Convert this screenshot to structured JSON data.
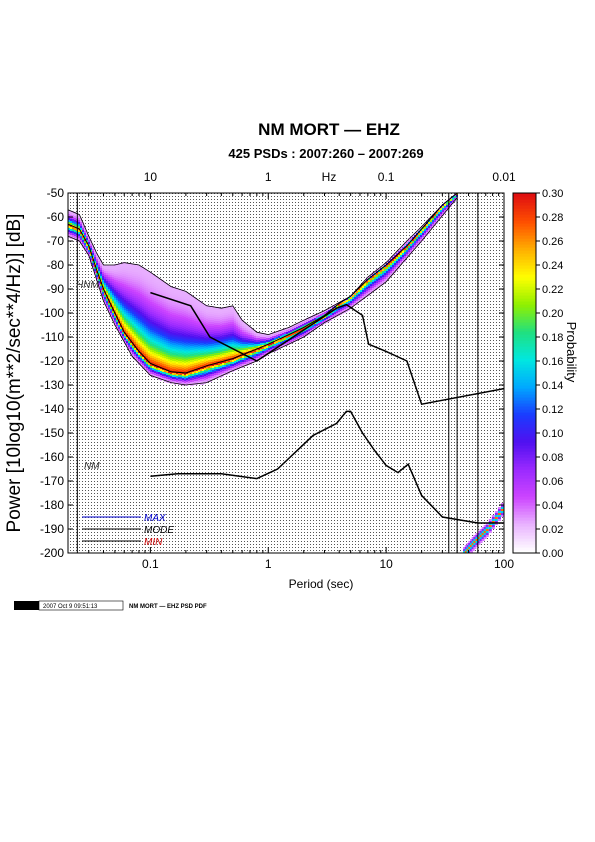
{
  "titles": {
    "main": "NM MORT — EHZ",
    "sub": "425 PSDs : 2007:260 – 2007:269"
  },
  "footer": {
    "logo": "GMT",
    "timestamp": "2007 Oct  9 09:51:13",
    "caption": "NM MORT — EHZ PSD PDF"
  },
  "colors": {
    "cmap": [
      "#ffffff",
      "#e9b3ff",
      "#cc44ff",
      "#9a2aff",
      "#5010f0",
      "#1a3cff",
      "#00a8ff",
      "#00e8e0",
      "#20e080",
      "#90f000",
      "#ffff00",
      "#ffb000",
      "#ff5000",
      "#e01010"
    ],
    "max_line": "#0000cc",
    "mode_line": "#000000",
    "min_line": "#cc0000"
  },
  "chart_data": {
    "type": "heatmap",
    "title": "NM MORT — EHZ",
    "subtitle": "425 PSDs : 2007:260 – 2007:269",
    "xlabel": "Period (sec)",
    "x_top_label": "Hz",
    "ylabel": "Power [10log10(m**2/sec**4/Hz)] [dB]",
    "xscale": "log",
    "xlim": [
      0.02,
      100
    ],
    "ylim": [
      -200,
      -50
    ],
    "grid": true,
    "x_ticks": [
      0.1,
      1,
      10,
      100
    ],
    "x_tick_labels": [
      "0.1",
      "1",
      "10",
      "100"
    ],
    "x_top_ticks": [
      0.1,
      1,
      10,
      100
    ],
    "x_top_tick_labels": [
      "10",
      "1",
      "0.1",
      "0.01"
    ],
    "y_ticks": [
      -200,
      -190,
      -180,
      -170,
      -160,
      -150,
      -140,
      -130,
      -120,
      -110,
      -100,
      -90,
      -80,
      -70,
      -60,
      -50
    ],
    "colorbar": {
      "label": "Probability",
      "range": [
        0,
        0.3
      ],
      "ticks": [
        "0.00",
        "0.02",
        "0.04",
        "0.06",
        "0.08",
        "0.10",
        "0.12",
        "0.14",
        "0.16",
        "0.18",
        "0.20",
        "0.22",
        "0.24",
        "0.26",
        "0.28",
        "0.30"
      ]
    },
    "noise_model_labels": {
      "high": "HNM",
      "low": "NM"
    },
    "legend": {
      "position": "bottom-left",
      "entries": [
        {
          "label": "MAX"
        },
        {
          "label": "MODE"
        },
        {
          "label": "MIN"
        }
      ]
    },
    "series": [
      {
        "id": "mode",
        "points": [
          [
            0.02,
            -63
          ],
          [
            0.025,
            -65
          ],
          [
            0.03,
            -72
          ],
          [
            0.035,
            -82
          ],
          [
            0.04,
            -90
          ],
          [
            0.05,
            -100
          ],
          [
            0.06,
            -108
          ],
          [
            0.08,
            -116
          ],
          [
            0.1,
            -121
          ],
          [
            0.15,
            -124.5
          ],
          [
            0.2,
            -125
          ],
          [
            0.3,
            -122
          ],
          [
            0.5,
            -119
          ],
          [
            0.8,
            -115
          ],
          [
            1,
            -113
          ],
          [
            1.5,
            -109
          ],
          [
            2,
            -106
          ],
          [
            3,
            -101
          ],
          [
            4,
            -96
          ],
          [
            5,
            -93
          ],
          [
            7,
            -86
          ],
          [
            10,
            -80
          ],
          [
            15,
            -72
          ],
          [
            20,
            -65
          ],
          [
            30,
            -55
          ],
          [
            40,
            -50
          ]
        ]
      },
      {
        "id": "max",
        "points": [
          [
            0.02,
            -57
          ],
          [
            0.025,
            -59
          ],
          [
            0.03,
            -68
          ],
          [
            0.035,
            -75
          ],
          [
            0.04,
            -80
          ],
          [
            0.05,
            -80
          ],
          [
            0.06,
            -79
          ],
          [
            0.08,
            -80
          ],
          [
            0.1,
            -83
          ],
          [
            0.15,
            -89
          ],
          [
            0.2,
            -91
          ],
          [
            0.3,
            -97
          ],
          [
            0.4,
            -98
          ],
          [
            0.5,
            -97
          ],
          [
            0.6,
            -103
          ],
          [
            0.8,
            -108
          ],
          [
            1,
            -109
          ],
          [
            1.5,
            -106
          ],
          [
            2,
            -103
          ],
          [
            3,
            -99
          ],
          [
            5,
            -93
          ],
          [
            7,
            -85
          ],
          [
            10,
            -79
          ],
          [
            15,
            -70
          ],
          [
            20,
            -64
          ],
          [
            30,
            -55
          ],
          [
            40,
            -50
          ]
        ]
      },
      {
        "id": "min",
        "points": [
          [
            0.02,
            -68
          ],
          [
            0.025,
            -70
          ],
          [
            0.03,
            -76
          ],
          [
            0.04,
            -95
          ],
          [
            0.05,
            -105
          ],
          [
            0.07,
            -118
          ],
          [
            0.1,
            -126
          ],
          [
            0.15,
            -129
          ],
          [
            0.2,
            -130
          ],
          [
            0.3,
            -129
          ],
          [
            0.5,
            -124
          ],
          [
            0.8,
            -120
          ],
          [
            1,
            -117
          ],
          [
            2,
            -110
          ],
          [
            3,
            -104
          ],
          [
            5,
            -98
          ],
          [
            10,
            -87
          ],
          [
            20,
            -70
          ],
          [
            40,
            -52
          ]
        ]
      },
      {
        "id": "hnm",
        "points": [
          [
            0.1,
            -91.5
          ],
          [
            0.22,
            -97
          ],
          [
            0.32,
            -110
          ],
          [
            0.8,
            -120
          ],
          [
            3.8,
            -98
          ],
          [
            4.6,
            -96.5
          ],
          [
            6.3,
            -101
          ],
          [
            7.1,
            -113
          ],
          [
            10,
            -116
          ],
          [
            15,
            -120
          ],
          [
            20,
            -138
          ],
          [
            100,
            -131.5
          ]
        ]
      },
      {
        "id": "lnm",
        "points": [
          [
            0.1,
            -168
          ],
          [
            0.17,
            -167
          ],
          [
            0.4,
            -167
          ],
          [
            0.8,
            -169
          ],
          [
            1.2,
            -165
          ],
          [
            2.4,
            -151
          ],
          [
            3.8,
            -146
          ],
          [
            4.6,
            -141
          ],
          [
            5,
            -141
          ],
          [
            6.3,
            -150
          ],
          [
            7.9,
            -157
          ],
          [
            10,
            -163.5
          ],
          [
            12.6,
            -166.5
          ],
          [
            15.4,
            -163
          ],
          [
            20,
            -176
          ],
          [
            30,
            -185
          ],
          [
            60,
            -187.5
          ],
          [
            100,
            -187.5
          ]
        ]
      }
    ],
    "spurious_lines_period": [
      0.024,
      34,
      40,
      60
    ]
  }
}
